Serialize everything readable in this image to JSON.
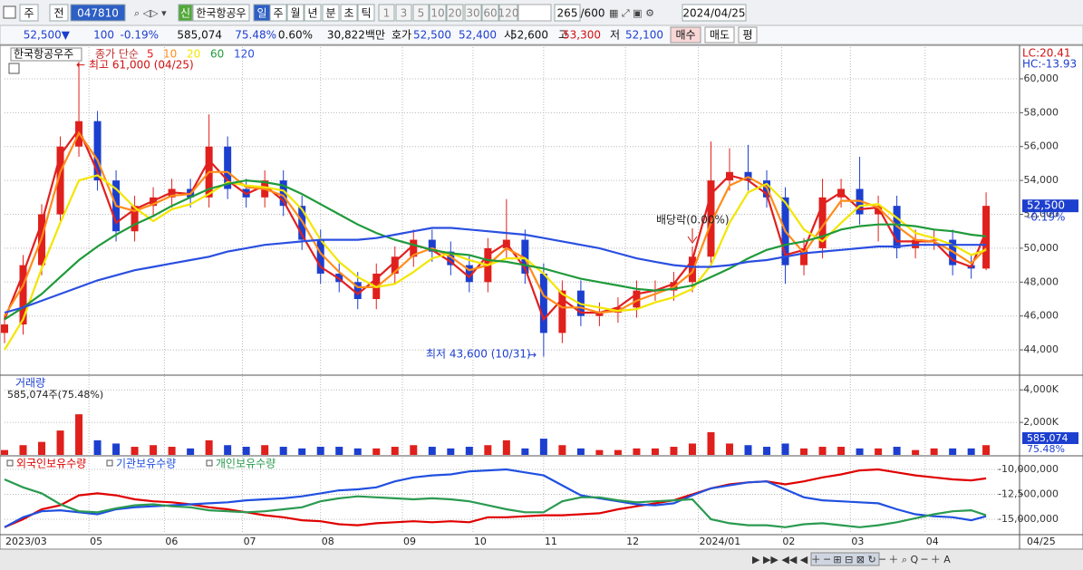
{
  "toolbar": {
    "period": "주",
    "mode": "전",
    "code": "047810",
    "badge": "신",
    "name": "한국항공우",
    "intervals": [
      "일",
      "주",
      "월",
      "년",
      "분",
      "초",
      "틱"
    ],
    "minutes": [
      "1",
      "3",
      "5",
      "10",
      "20",
      "30",
      "60",
      "120"
    ],
    "count": "265",
    "max": "/600",
    "date": "2024/04/25"
  },
  "quote": {
    "price": "52,500▼",
    "change": "100",
    "rate": "-0.19%",
    "volume": "585,074",
    "volume_rate": "75.48%",
    "turnover": "0.60%",
    "amount": "30,822백만",
    "bid_label": "호가",
    "ask": "52,500",
    "bid": "52,400",
    "open_label": "시",
    "open": "52,600",
    "high_label": "고",
    "high": "53,300",
    "low_label": "저",
    "low": "52,100",
    "buy": "매수",
    "sell": "매도",
    "avg": "평"
  },
  "chart_data": [
    {
      "type": "candlestick",
      "title": "한국항공우주",
      "legend_title": "종가 단순",
      "x": [
        0,
        5,
        10,
        15,
        20,
        25,
        30,
        35,
        40,
        45,
        50,
        55,
        60,
        65,
        70,
        75,
        80,
        85,
        90,
        95,
        100,
        105,
        110,
        115,
        120,
        125,
        130,
        135,
        140,
        145,
        150,
        155,
        160,
        165,
        170,
        175,
        180,
        185,
        190,
        195,
        200,
        205,
        210,
        215,
        220,
        225,
        230,
        235,
        240,
        245,
        250,
        255,
        260,
        264
      ],
      "open": [
        45000,
        45500,
        49000,
        52000,
        56000,
        57500,
        54000,
        51000,
        52500,
        53000,
        53500,
        53000,
        56000,
        53500,
        53000,
        54000,
        52500,
        50500,
        48500,
        48000,
        47000,
        48500,
        49500,
        50500,
        49800,
        49000,
        48000,
        50000,
        50500,
        48500,
        45000,
        47500,
        46000,
        46200,
        46500,
        47500,
        47500,
        48000,
        49500,
        54000,
        54500,
        54000,
        53000,
        49000,
        50000,
        53000,
        53500,
        52000,
        52500,
        50000,
        50500,
        50500,
        49000,
        48800
      ],
      "high": [
        46100,
        49600,
        52600,
        56600,
        61000,
        58100,
        54600,
        53100,
        53600,
        54100,
        54100,
        57900,
        56600,
        54100,
        54600,
        54600,
        53100,
        51100,
        49100,
        48600,
        49100,
        50100,
        51100,
        51100,
        50400,
        49600,
        50600,
        52900,
        51100,
        49100,
        48100,
        48100,
        46800,
        47100,
        48100,
        48100,
        48600,
        50100,
        56300,
        55900,
        56100,
        54600,
        53600,
        50600,
        54100,
        54100,
        55400,
        53100,
        53100,
        51100,
        51100,
        51100,
        49600,
        53300
      ],
      "low": [
        44400,
        44900,
        48400,
        51400,
        55400,
        53400,
        50400,
        50400,
        51900,
        52400,
        52400,
        52400,
        52900,
        52400,
        52400,
        51900,
        49900,
        47900,
        47400,
        46400,
        46400,
        47900,
        48900,
        49200,
        48400,
        47400,
        47400,
        49400,
        47900,
        43600,
        44400,
        45400,
        45400,
        45600,
        45900,
        46900,
        46900,
        47400,
        48900,
        53400,
        53400,
        52400,
        47900,
        48400,
        49400,
        52400,
        51400,
        50400,
        49400,
        49400,
        49900,
        48400,
        48200,
        48700
      ],
      "close": [
        45500,
        49000,
        52000,
        56000,
        57500,
        54000,
        51000,
        52500,
        53000,
        53500,
        53000,
        56000,
        53500,
        53000,
        54000,
        52500,
        50500,
        48500,
        48000,
        47000,
        48500,
        49500,
        50500,
        49800,
        49000,
        48000,
        50000,
        50500,
        48500,
        45000,
        47500,
        46000,
        46200,
        46500,
        47500,
        47500,
        48000,
        49500,
        54000,
        54500,
        54000,
        53000,
        49000,
        50000,
        53000,
        53500,
        52000,
        52500,
        50000,
        50500,
        50500,
        49000,
        48800,
        52500
      ],
      "up_color": "#e0201c",
      "down_color": "#1d3fcf",
      "series": [
        {
          "name": "5",
          "color": "#e02020",
          "values": [
            45800,
            48500,
            51500,
            55500,
            57000,
            54500,
            51500,
            52300,
            52800,
            53300,
            53200,
            55200,
            54000,
            53200,
            53700,
            52800,
            50800,
            48900,
            48200,
            47300,
            48200,
            49200,
            50200,
            49900,
            49200,
            48300,
            49600,
            50300,
            48800,
            45800,
            47000,
            46200,
            46200,
            46500,
            47300,
            47500,
            47900,
            49300,
            53200,
            54300,
            54000,
            53200,
            49600,
            49900,
            52600,
            53300,
            52300,
            52400,
            50400,
            50400,
            50400,
            49300,
            48900,
            51000
          ]
        },
        {
          "name": "10",
          "color": "#ff8c1a",
          "values": [
            46000,
            47800,
            50600,
            54500,
            56800,
            55200,
            52500,
            52200,
            52600,
            53100,
            53200,
            54500,
            54500,
            53600,
            53500,
            53100,
            51600,
            49700,
            48600,
            47700,
            47700,
            48600,
            49600,
            50000,
            49500,
            48700,
            49000,
            50000,
            49400,
            47200,
            46500,
            46500,
            46200,
            46300,
            46900,
            47300,
            47700,
            48600,
            51500,
            53700,
            54200,
            53600,
            51000,
            49700,
            51300,
            52800,
            52800,
            52400,
            51300,
            50500,
            50400,
            49800,
            49100,
            50000
          ]
        },
        {
          "name": "20",
          "color": "#f2e600",
          "values": [
            44000,
            45800,
            48800,
            51500,
            54000,
            54300,
            53500,
            52400,
            51600,
            52300,
            52600,
            53200,
            53900,
            53700,
            53600,
            53400,
            52300,
            50500,
            49200,
            48300,
            47700,
            47900,
            48600,
            49400,
            49700,
            49300,
            49000,
            49400,
            49400,
            48500,
            47300,
            46700,
            46500,
            46300,
            46400,
            46800,
            47100,
            47600,
            49000,
            51500,
            53300,
            53800,
            52700,
            51100,
            50400,
            51500,
            52500,
            52600,
            51800,
            50900,
            50600,
            50200,
            49600,
            49900
          ]
        },
        {
          "name": "60",
          "color": "#1f9a3a",
          "values": [
            45800,
            46500,
            47300,
            48300,
            49300,
            50100,
            50800,
            51400,
            51900,
            52500,
            53000,
            53500,
            53800,
            54000,
            53900,
            53700,
            53200,
            52600,
            52000,
            51400,
            50900,
            50500,
            50200,
            49900,
            49700,
            49600,
            49300,
            49200,
            49000,
            48800,
            48500,
            48200,
            48000,
            47800,
            47600,
            47500,
            47600,
            47800,
            48300,
            48800,
            49400,
            49900,
            50200,
            50400,
            50700,
            51100,
            51300,
            51400,
            51400,
            51300,
            51100,
            51000,
            50800,
            50700
          ]
        },
        {
          "name": "120",
          "color": "#2a4fe0",
          "values": [
            46200,
            46500,
            46900,
            47300,
            47700,
            48100,
            48400,
            48700,
            48900,
            49100,
            49300,
            49500,
            49800,
            50000,
            50200,
            50300,
            50400,
            50500,
            50500,
            50500,
            50600,
            50800,
            51000,
            51200,
            51200,
            51100,
            51000,
            50900,
            50800,
            50600,
            50400,
            50200,
            50000,
            49700,
            49400,
            49200,
            49000,
            48900,
            48900,
            49000,
            49200,
            49300,
            49500,
            49700,
            49800,
            49900,
            50000,
            50100,
            50100,
            50200,
            50200,
            50200,
            50200,
            50200
          ]
        }
      ],
      "xlim": [
        0,
        273
      ],
      "ylim": [
        42560,
        61870
      ],
      "yticks": [
        {
          "value": 44000,
          "label": "44,000"
        },
        {
          "value": 46000,
          "label": "46,000"
        },
        {
          "value": 48000,
          "label": "48,000"
        },
        {
          "value": 50000,
          "label": "50,000"
        },
        {
          "value": 52000,
          "label": "52,000"
        },
        {
          "value": 54000,
          "label": "54,000"
        },
        {
          "value": 56000,
          "label": "56,000"
        },
        {
          "value": 58000,
          "label": "58,000"
        },
        {
          "value": 60000,
          "label": "60,000"
        }
      ],
      "grid": true,
      "lc": "LC:20.41",
      "hc": "HC:-13.93",
      "price_tag": "52,500",
      "change_tag": "-0.19%",
      "annotations": [
        "최고 61,000 (04/25)",
        "최저 43,600 (10/31)",
        "배당락(0.00%)"
      ]
    },
    {
      "type": "bar",
      "title": "거래량",
      "subtitle": "585,074주(75.48%)",
      "x": [
        0,
        5,
        10,
        15,
        20,
        25,
        30,
        35,
        40,
        45,
        50,
        55,
        60,
        65,
        70,
        75,
        80,
        85,
        90,
        95,
        100,
        105,
        110,
        115,
        120,
        125,
        130,
        135,
        140,
        145,
        150,
        155,
        160,
        165,
        170,
        175,
        180,
        185,
        190,
        195,
        200,
        205,
        210,
        215,
        220,
        225,
        230,
        235,
        240,
        245,
        250,
        255,
        260,
        264
      ],
      "values": [
        300,
        600,
        800,
        1500,
        2500,
        900,
        700,
        500,
        600,
        500,
        400,
        900,
        600,
        500,
        600,
        500,
        400,
        500,
        500,
        400,
        400,
        500,
        600,
        500,
        400,
        500,
        600,
        900,
        400,
        1000,
        600,
        400,
        300,
        300,
        400,
        400,
        500,
        700,
        1400,
        700,
        600,
        500,
        700,
        400,
        500,
        500,
        400,
        400,
        500,
        300,
        400,
        400,
        400,
        600
      ],
      "xlim": [
        0,
        273
      ],
      "ylim": [
        0,
        4850
      ],
      "yticks": [
        {
          "value": 2000,
          "label": "2,000K"
        },
        {
          "value": 4000,
          "label": "4,000K"
        }
      ],
      "grid": true,
      "value_tag": "585,074",
      "rate_tag": "75.48%"
    },
    {
      "type": "line",
      "x": [
        0,
        5,
        10,
        15,
        20,
        25,
        30,
        35,
        40,
        45,
        50,
        55,
        60,
        65,
        70,
        75,
        80,
        85,
        90,
        95,
        100,
        105,
        110,
        115,
        120,
        125,
        130,
        135,
        140,
        145,
        150,
        155,
        160,
        165,
        170,
        175,
        180,
        185,
        190,
        195,
        200,
        205,
        210,
        215,
        220,
        225,
        230,
        235,
        240,
        245,
        250,
        255,
        260,
        264
      ],
      "series": [
        {
          "name": "외국인보유수량",
          "color": "#e00000",
          "values": [
            -15800000,
            -15000000,
            -14000000,
            -13600000,
            -12600000,
            -12400000,
            -12600000,
            -13000000,
            -13200000,
            -13300000,
            -13500000,
            -13800000,
            -14000000,
            -14300000,
            -14600000,
            -14800000,
            -15100000,
            -15200000,
            -15500000,
            -15600000,
            -15400000,
            -15300000,
            -15200000,
            -15300000,
            -15200000,
            -15300000,
            -14800000,
            -14800000,
            -14700000,
            -14600000,
            -14600000,
            -14500000,
            -14400000,
            -14000000,
            -13700000,
            -13400000,
            -13100000,
            -12500000,
            -11900000,
            -11500000,
            -11300000,
            -11200000,
            -11500000,
            -11200000,
            -10800000,
            -10500000,
            -10100000,
            -10000000,
            -10300000,
            -10600000,
            -10800000,
            -11000000,
            -11100000,
            -10900000
          ]
        },
        {
          "name": "기관보유수량",
          "color": "#2050e0",
          "values": [
            -15800000,
            -14800000,
            -14200000,
            -14100000,
            -14300000,
            -14500000,
            -14000000,
            -13800000,
            -13700000,
            -13600000,
            -13500000,
            -13400000,
            -13300000,
            -13100000,
            -13000000,
            -12900000,
            -12700000,
            -12400000,
            -12100000,
            -12000000,
            -11800000,
            -11200000,
            -10800000,
            -10600000,
            -10500000,
            -10200000,
            -10100000,
            -10000000,
            -10300000,
            -10600000,
            -11600000,
            -12600000,
            -12900000,
            -13200000,
            -13500000,
            -13600000,
            -13400000,
            -12600000,
            -11900000,
            -11600000,
            -11300000,
            -11200000,
            -12000000,
            -12800000,
            -13100000,
            -13200000,
            -13300000,
            -13400000,
            -14000000,
            -14500000,
            -14700000,
            -14800000,
            -15100000,
            -14700000
          ]
        },
        {
          "name": "개인보유수량",
          "color": "#2a9a50",
          "values": [
            -11000000,
            -11800000,
            -12400000,
            -13500000,
            -14200000,
            -14300000,
            -13900000,
            -13600000,
            -13500000,
            -13700000,
            -13800000,
            -14100000,
            -14200000,
            -14300000,
            -14200000,
            -14000000,
            -13800000,
            -13200000,
            -12900000,
            -12700000,
            -12800000,
            -12900000,
            -13000000,
            -12900000,
            -13000000,
            -13200000,
            -13600000,
            -14000000,
            -14300000,
            -14300000,
            -13200000,
            -12800000,
            -12800000,
            -13100000,
            -13300000,
            -13200000,
            -13100000,
            -13000000,
            -15000000,
            -15400000,
            -15600000,
            -15600000,
            -15800000,
            -15500000,
            -15400000,
            -15600000,
            -15800000,
            -15600000,
            -15300000,
            -14900000,
            -14500000,
            -14200000,
            -14100000,
            -14600000
          ]
        }
      ],
      "xlim": [
        0,
        273
      ],
      "ylim": [
        -16550000,
        -8820000
      ],
      "yticks": [
        {
          "value": -15000000,
          "label": "-15,000,000"
        },
        {
          "value": -12500000,
          "label": "-12,500,000"
        },
        {
          "value": -10000000,
          "label": "-10,000,000"
        }
      ],
      "xticks": [
        {
          "value": 0,
          "label": "2023/03"
        },
        {
          "value": 22.7,
          "label": "05"
        },
        {
          "value": 43,
          "label": "06"
        },
        {
          "value": 64,
          "label": "07"
        },
        {
          "value": 85,
          "label": "08"
        },
        {
          "value": 107,
          "label": "09"
        },
        {
          "value": 126,
          "label": "10"
        },
        {
          "value": 145,
          "label": "11"
        },
        {
          "value": 167,
          "label": "12"
        },
        {
          "value": 186.6,
          "label": "2024/01"
        },
        {
          "value": 209,
          "label": "02"
        },
        {
          "value": 227.5,
          "label": "03"
        },
        {
          "value": 247.6,
          "label": "04"
        }
      ],
      "grid": true,
      "last_label": "04/25"
    }
  ]
}
